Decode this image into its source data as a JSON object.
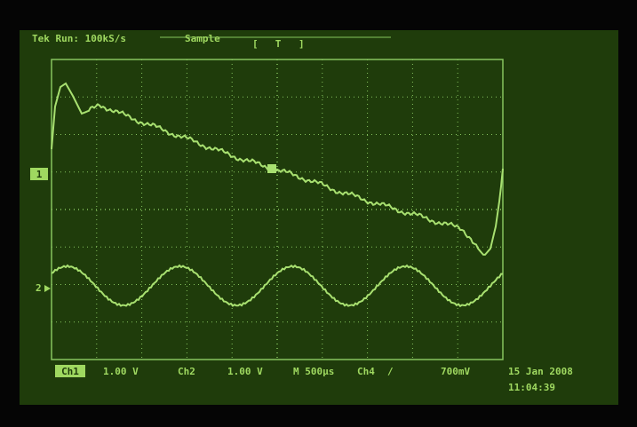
{
  "header": {
    "status": "Tek Run: 100kS/s",
    "mode": "Sample",
    "trigger_marker": "T"
  },
  "markers": {
    "ch1": "1",
    "ch2": "2"
  },
  "footer": {
    "ch1_label": "Ch1",
    "ch1_scale": "1.00 V",
    "ch2_label": "Ch2",
    "ch2_scale": "1.00 V",
    "timebase": "M 500µs",
    "trigger_source": "Ch4",
    "trigger_slope": "/",
    "trigger_level": "700mV",
    "date": "15 Jan 2008",
    "time": "11:04:39"
  }
}
